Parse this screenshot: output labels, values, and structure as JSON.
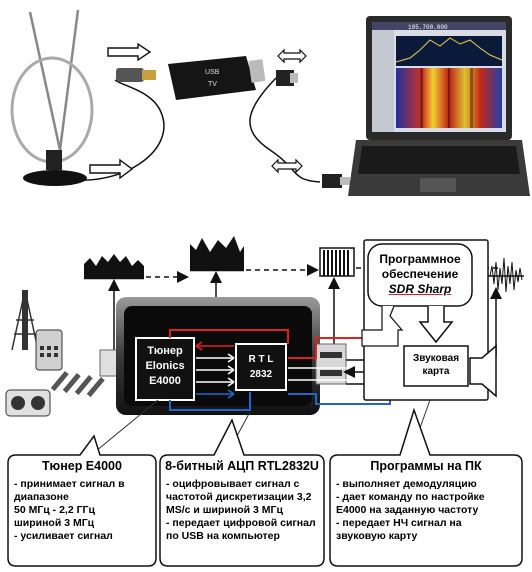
{
  "dongle": {
    "label_top": "USB",
    "label_bottom": "TV"
  },
  "laptop_screen": {
    "freq_readout": "105.700.000"
  },
  "tuner": {
    "lines": [
      "Тюнер",
      "Elonics",
      "E4000"
    ]
  },
  "rtl": {
    "lines": [
      "R T L",
      "2832"
    ]
  },
  "software": {
    "line1": "Программное",
    "line2": "обеспечение",
    "name": "SDR Sharp"
  },
  "soundcard": {
    "line1": "Звуковая",
    "line2": "карта"
  },
  "cards": [
    {
      "title": "Тюнер E4000",
      "items": [
        "- принимает сигнал в",
        "диапазоне",
        " 50 МГц - 2,2 ГГц",
        "шириной 3 МГц",
        "- усиливает сигнал"
      ]
    },
    {
      "title": "8-битный АЦП RTL2832U",
      "items": [
        "- оцифровывает сигнал с",
        "частотой дискретизации 3,2",
        "MS/c и шириной  3 МГц",
        "- передает цифровой сигнал",
        "по USB на компьютер"
      ]
    },
    {
      "title": "Программы на ПК",
      "items": [
        "- выполняет демодуляцию",
        "- дает команду по настройке",
        "E4000 на заданную частоту",
        "- передает НЧ сигнал на",
        "звуковую карту"
      ]
    }
  ],
  "colors": {
    "red_path": "#dd2222",
    "blue_path": "#2266cc",
    "spectrum": "#c03020"
  }
}
